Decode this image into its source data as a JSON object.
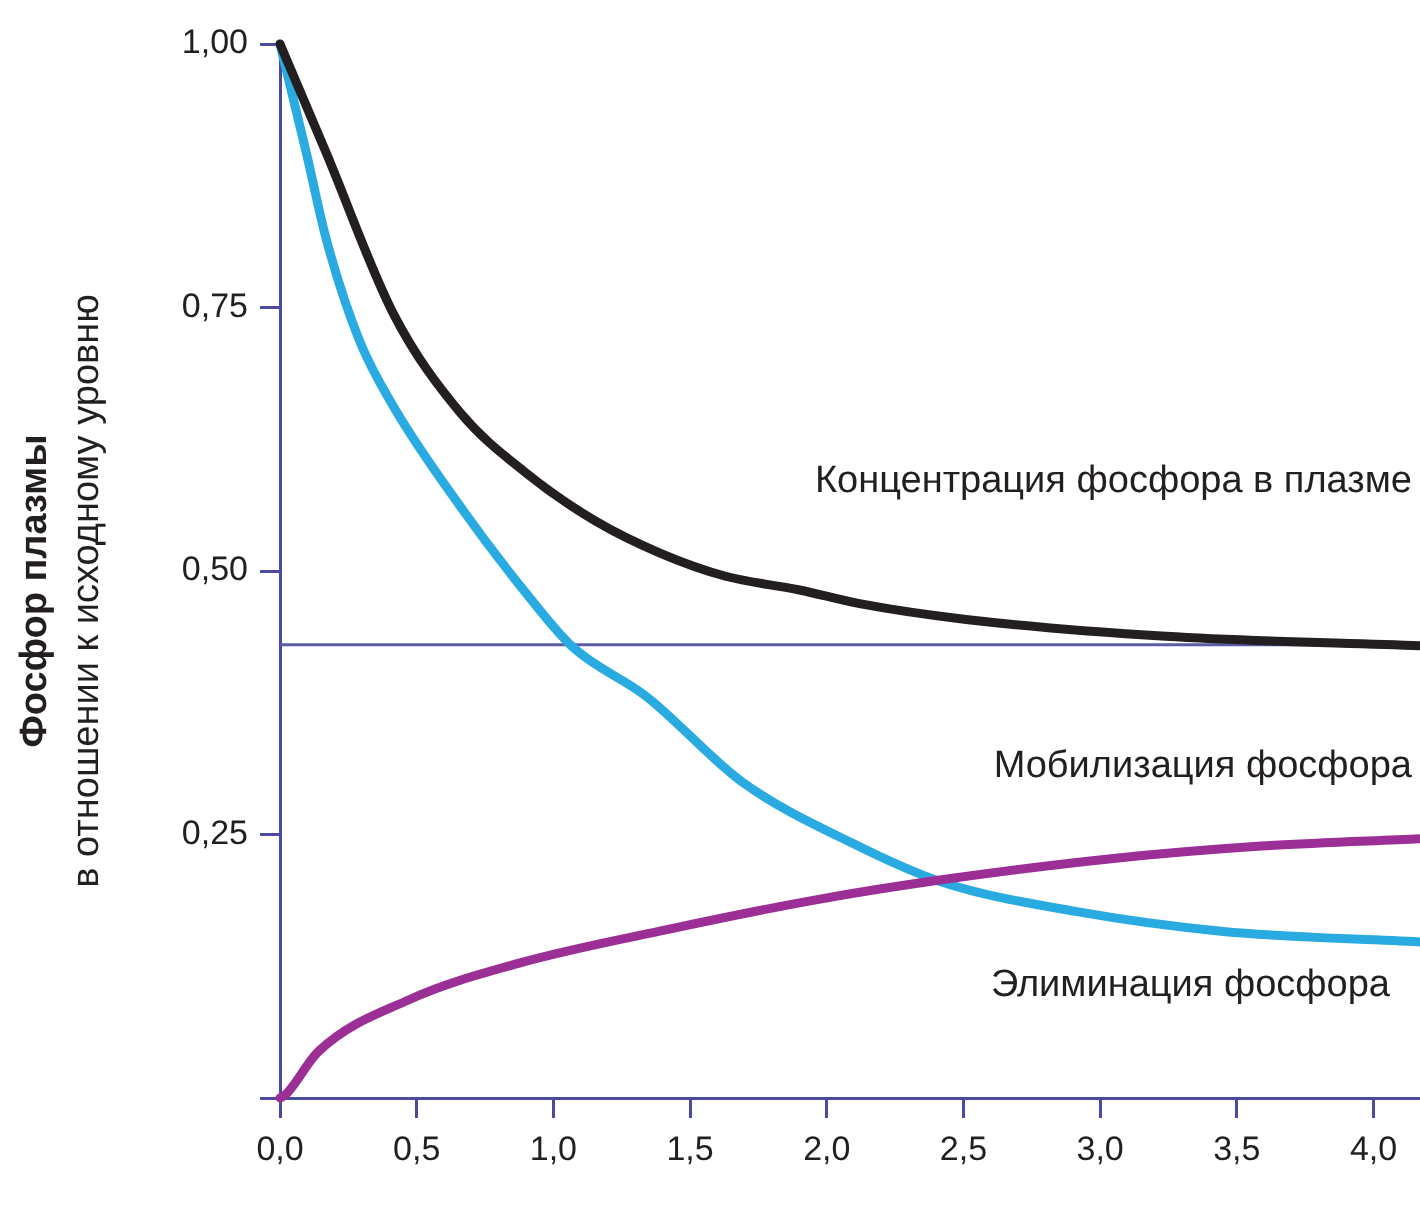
{
  "chart_data": {
    "type": "line",
    "ylabel": "Фосфор плазмы\nв отношении к исходному уровню",
    "xlim": [
      0,
      4.17
    ],
    "ylim": [
      0,
      1
    ],
    "xticks": [
      {
        "value": 0,
        "label": "0,0"
      },
      {
        "value": 0.5,
        "label": "0,5"
      },
      {
        "value": 1,
        "label": "1,0"
      },
      {
        "value": 1.5,
        "label": "1,5"
      },
      {
        "value": 2,
        "label": "2,0"
      },
      {
        "value": 2.5,
        "label": "2,5"
      },
      {
        "value": 3,
        "label": "3,0"
      },
      {
        "value": 3.5,
        "label": "3,5"
      },
      {
        "value": 4,
        "label": "4,0"
      }
    ],
    "yticks": [
      {
        "value": 0,
        "label": null
      },
      {
        "value": 0.25,
        "label": "0,25"
      },
      {
        "value": 0.5,
        "label": "0,50"
      },
      {
        "value": 0.75,
        "label": "0,75"
      },
      {
        "value": 1,
        "label": "1,00"
      }
    ],
    "grid": false,
    "legend": false,
    "marker": "none",
    "line_style": "solid",
    "ref_lines": [
      {
        "axis": "y",
        "value": 0.43,
        "color": "#5b5ba8"
      }
    ],
    "series": [
      {
        "name": "Концентрация фосфора в плазме",
        "color": "#231f20",
        "x": [
          0,
          0.17,
          0.415,
          0.66,
          0.9,
          1.15,
          1.39,
          1.63,
          1.9,
          2.12,
          2.51,
          3.24,
          4.17
        ],
        "values": [
          1,
          0.896,
          0.744,
          0.65,
          0.593,
          0.548,
          0.517,
          0.495,
          0.482,
          0.469,
          0.454,
          0.438,
          0.429
        ]
      },
      {
        "name": "Мобилизация фосфора",
        "color": "#9b2f96",
        "x": [
          0,
          0.02,
          0.14,
          0.47,
          0.875,
          1.42,
          1.96,
          2.42,
          3.04,
          3.59,
          4.17
        ],
        "values": [
          0,
          0.003,
          0.044,
          0.093,
          0.128,
          0.16,
          0.188,
          0.207,
          0.227,
          0.239,
          0.246
        ]
      },
      {
        "name": "Элиминация фосфора",
        "color": "#29abe2",
        "x": [
          0,
          0.097,
          0.17,
          0.29,
          0.415,
          0.66,
          0.9,
          1.07,
          1.34,
          1.69,
          2.1,
          2.42,
          2.91,
          3.45,
          4.17
        ],
        "values": [
          1,
          0.896,
          0.814,
          0.719,
          0.656,
          0.561,
          0.479,
          0.428,
          0.381,
          0.3,
          0.241,
          0.205,
          0.177,
          0.158,
          0.148
        ]
      }
    ]
  }
}
